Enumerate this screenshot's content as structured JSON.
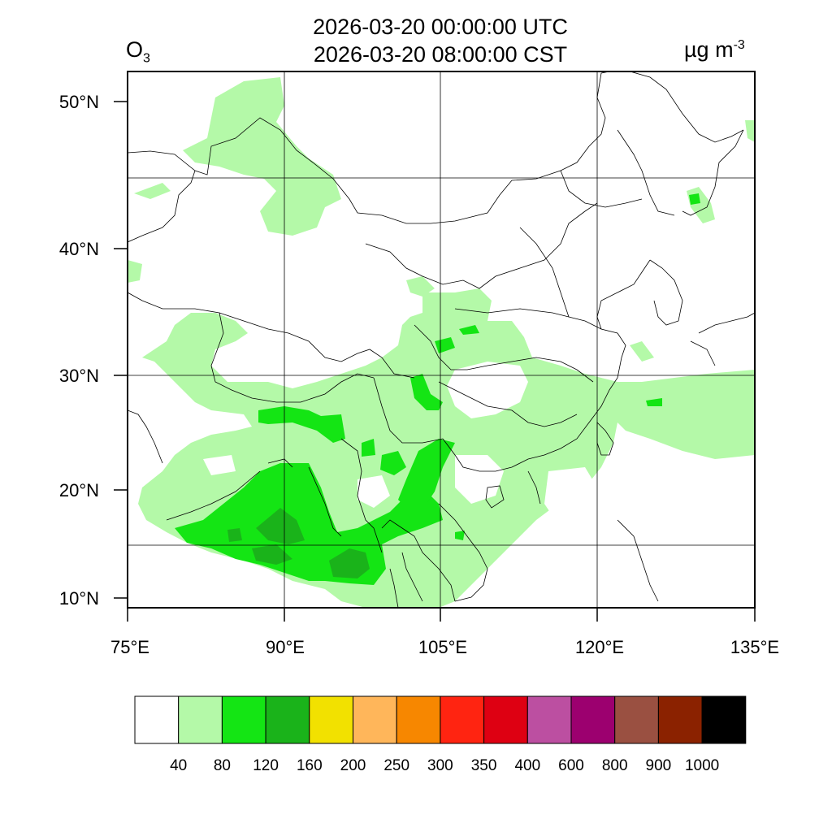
{
  "header": {
    "species": "O",
    "species_subscript": "3",
    "time_utc": "2026-03-20 00:00:00 UTC",
    "time_local": "2026-03-20 08:00:00 CST",
    "unit_main": "µg m",
    "unit_exponent": "-3"
  },
  "axes": {
    "lat_labels": [
      "50°N",
      "40°N",
      "30°N",
      "20°N",
      "10°N"
    ],
    "lon_labels": [
      "75°E",
      "90°E",
      "105°E",
      "120°E",
      "135°E"
    ]
  },
  "colorbar": {
    "colors": [
      "#ffffff",
      "#b4f9a8",
      "#14e514",
      "#1ab31a",
      "#f2e100",
      "#ffb65a",
      "#f78700",
      "#ff2411",
      "#de0012",
      "#bc4fa1",
      "#9c006f",
      "#9a5041",
      "#8b2200",
      "#000000"
    ],
    "labels": [
      "40",
      "80",
      "120",
      "160",
      "200",
      "250",
      "300",
      "350",
      "400",
      "600",
      "800",
      "900",
      "1000"
    ]
  },
  "style": {
    "grid_color": "#000000",
    "boundary_color": "#000000"
  }
}
